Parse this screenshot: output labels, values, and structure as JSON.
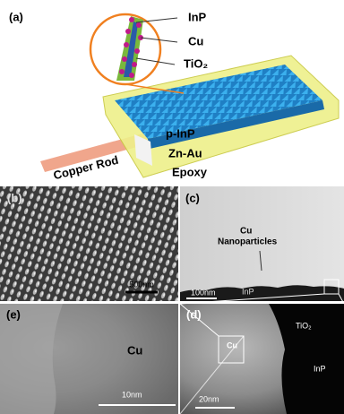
{
  "panel_a": {
    "label": "(a)",
    "inset_labels": [
      "InP",
      "Cu",
      "TiO₂"
    ],
    "layers": [
      "p-InP",
      "Zn-Au",
      "Epoxy"
    ],
    "rod": "Copper Rod"
  },
  "panel_b": {
    "label": "(b)",
    "scale_bar": "500nm"
  },
  "panel_c": {
    "label": "(c)",
    "annotation": [
      "Cu",
      "Nanoparticles"
    ],
    "scale_bar": "100nm",
    "material": "InP"
  },
  "panel_e": {
    "label": "(e)",
    "material": "Cu",
    "scale_bar": "10nm"
  },
  "panel_d": {
    "label": "(d)",
    "labels": [
      "Cu",
      "TiO₂",
      "InP"
    ],
    "scale_bar": "20nm"
  }
}
